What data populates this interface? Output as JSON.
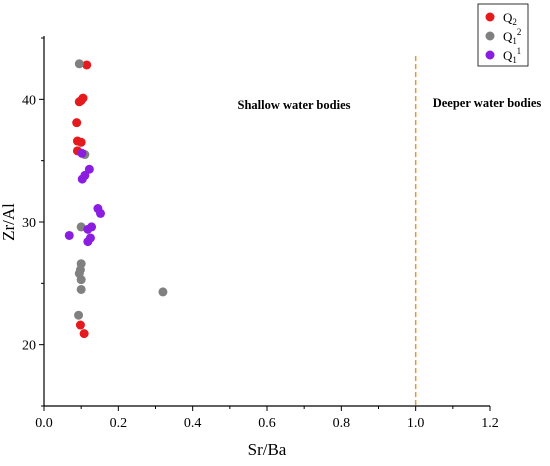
{
  "chart_data": {
    "type": "scatter",
    "xlabel": "Sr/Ba",
    "ylabel": "Zr/Al",
    "xlim": [
      0.0,
      1.2
    ],
    "ylim": [
      15,
      45
    ],
    "xticks": [
      "0.0",
      "0.2",
      "0.4",
      "0.6",
      "0.8",
      "1.0",
      "1.2"
    ],
    "yticks": [
      "20",
      "30",
      "40"
    ],
    "divider_x": 1.0,
    "divider_color": "#e8943a",
    "annotations": {
      "left": "Shallow water bodies",
      "right": "Deeper water bodies"
    },
    "legend_position": "top-right",
    "series": [
      {
        "name": "Q2",
        "name_base": "Q",
        "name_sub": "2",
        "name_sup": "",
        "color": "#e41a1c",
        "points": [
          [
            0.115,
            42.8
          ],
          [
            0.105,
            40.1
          ],
          [
            0.1,
            39.9
          ],
          [
            0.095,
            39.8
          ],
          [
            0.088,
            38.1
          ],
          [
            0.09,
            36.6
          ],
          [
            0.1,
            36.5
          ],
          [
            0.09,
            35.8
          ],
          [
            0.098,
            21.6
          ],
          [
            0.108,
            20.9
          ]
        ]
      },
      {
        "name": "Q1 2",
        "name_base": "Q",
        "name_sub": "1",
        "name_sup": "2",
        "color": "#808080",
        "points": [
          [
            0.095,
            42.9
          ],
          [
            0.11,
            35.5
          ],
          [
            0.1,
            29.6
          ],
          [
            0.1,
            26.6
          ],
          [
            0.098,
            26.1
          ],
          [
            0.095,
            25.8
          ],
          [
            0.1,
            25.3
          ],
          [
            0.1,
            24.5
          ],
          [
            0.093,
            22.4
          ],
          [
            0.32,
            24.3
          ]
        ]
      },
      {
        "name": "Q1 1",
        "name_base": "Q",
        "name_sub": "1",
        "name_sup": "1",
        "color": "#8b1de0",
        "points": [
          [
            0.102,
            35.6
          ],
          [
            0.122,
            34.3
          ],
          [
            0.11,
            33.8
          ],
          [
            0.103,
            33.5
          ],
          [
            0.145,
            31.1
          ],
          [
            0.152,
            30.7
          ],
          [
            0.118,
            29.4
          ],
          [
            0.128,
            29.6
          ],
          [
            0.068,
            28.9
          ],
          [
            0.125,
            28.7
          ],
          [
            0.118,
            28.4
          ]
        ]
      }
    ]
  }
}
